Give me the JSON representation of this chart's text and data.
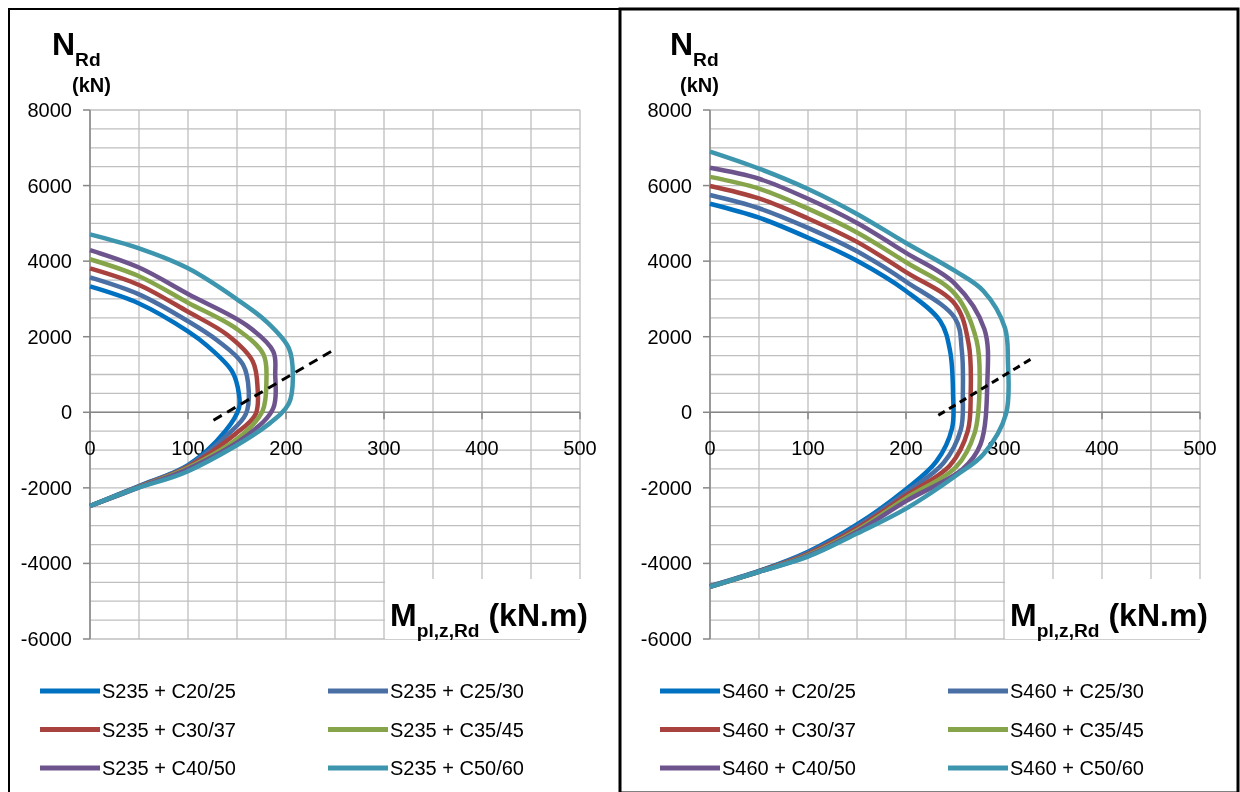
{
  "chart_data": [
    {
      "type": "line",
      "xlabel": "M$_{pl,z,Rd}$ (kN.m)",
      "ylabel": "N$_{Rd}$ (kN)",
      "xlim": [
        0,
        500
      ],
      "ylim": [
        -6000,
        8000
      ],
      "xticks": [
        0,
        {
          "value": 50,
          "label": null
        },
        100,
        {
          "value": 150,
          "label": null
        },
        200,
        {
          "value": 250,
          "label": null
        },
        300,
        {
          "value": 350,
          "label": null
        },
        400,
        {
          "value": 450,
          "label": null
        },
        500
      ],
      "yticks": [
        -6000,
        {
          "value": -5500,
          "label": null
        },
        {
          "value": -5000,
          "label": null
        },
        {
          "value": -4500,
          "label": null
        },
        -4000,
        {
          "value": -3500,
          "label": null
        },
        {
          "value": -3000,
          "label": null
        },
        {
          "value": -2500,
          "label": null
        },
        -2000,
        {
          "value": -1500,
          "label": null
        },
        {
          "value": -1000,
          "label": null
        },
        {
          "value": -500,
          "label": null
        },
        0,
        {
          "value": 500,
          "label": null
        },
        {
          "value": 1000,
          "label": null
        },
        {
          "value": 1500,
          "label": null
        },
        2000,
        {
          "value": 2500,
          "label": null
        },
        {
          "value": 3000,
          "label": null
        },
        {
          "value": 3500,
          "label": null
        },
        4000,
        {
          "value": 4500,
          "label": null
        },
        {
          "value": 5000,
          "label": null
        },
        {
          "value": 5500,
          "label": null
        },
        6000,
        {
          "value": 6500,
          "label": null
        },
        {
          "value": 7000,
          "label": null
        },
        {
          "value": 7500,
          "label": null
        },
        8000
      ],
      "grid": true,
      "legend": "bottom",
      "series": [
        {
          "name": "S235 + C20/25",
          "color": "#0070c0",
          "x": [
            0,
            50,
            100,
            120,
            145,
            152,
            152,
            138,
            100,
            50,
            0
          ],
          "values": [
            3330,
            2880,
            2140,
            1750,
            1080,
            480,
            110,
            -500,
            -1400,
            -1950,
            -2480
          ]
        },
        {
          "name": "S235 + C25/30",
          "color": "#4a6fa5",
          "x": [
            0,
            50,
            100,
            130,
            156,
            162,
            159,
            141,
            100,
            50,
            0
          ],
          "values": [
            3570,
            3120,
            2410,
            1900,
            1270,
            560,
            -50,
            -580,
            -1420,
            -1960,
            -2480
          ]
        },
        {
          "name": "S235 + C30/37",
          "color": "#a8423f",
          "x": [
            0,
            50,
            100,
            140,
            166,
            171,
            169,
            148,
            100,
            50,
            0
          ],
          "values": [
            3810,
            3370,
            2660,
            2050,
            1350,
            640,
            -50,
            -580,
            -1440,
            -1970,
            -2480
          ]
        },
        {
          "name": "S235 + C35/45",
          "color": "#86a44a",
          "x": [
            0,
            50,
            100,
            150,
            177,
            180,
            176,
            156,
            100,
            50,
            0
          ],
          "values": [
            4050,
            3600,
            2900,
            2200,
            1530,
            820,
            30,
            -580,
            -1470,
            -1980,
            -2480
          ]
        },
        {
          "name": "S235 + C40/50",
          "color": "#6e548d",
          "x": [
            0,
            50,
            100,
            160,
            187,
            189,
            187,
            162,
            100,
            50,
            0
          ],
          "values": [
            4290,
            3830,
            3130,
            2300,
            1610,
            1000,
            110,
            -580,
            -1500,
            -1990,
            -2480
          ]
        },
        {
          "name": "S235 + C50/60",
          "color": "#3d96ae",
          "x": [
            0,
            50,
            100,
            150,
            180,
            203,
            207,
            203,
            182,
            100,
            48,
            0
          ],
          "values": [
            4710,
            4340,
            3810,
            2990,
            2400,
            1690,
            900,
            240,
            -320,
            -1560,
            -2010,
            -2480
          ]
        },
        {
          "color": "#000000",
          "line_style": "dashed",
          "x": [
            126,
            246
          ],
          "values": [
            -210,
            1610
          ]
        }
      ]
    },
    {
      "type": "line",
      "xlabel": "M$_{pl,z,Rd}$ (kN.m)",
      "ylabel": "N$_{Rd}$ (kN)",
      "xlim": [
        0,
        500
      ],
      "ylim": [
        -6000,
        8000
      ],
      "xticks": [
        0,
        {
          "value": 50,
          "label": null
        },
        100,
        {
          "value": 150,
          "label": null
        },
        200,
        {
          "value": 250,
          "label": null
        },
        300,
        {
          "value": 350,
          "label": null
        },
        400,
        {
          "value": 450,
          "label": null
        },
        500
      ],
      "yticks": [
        -6000,
        {
          "value": -5500,
          "label": null
        },
        {
          "value": -5000,
          "label": null
        },
        {
          "value": -4500,
          "label": null
        },
        -4000,
        {
          "value": -3500,
          "label": null
        },
        {
          "value": -3000,
          "label": null
        },
        {
          "value": -2500,
          "label": null
        },
        -2000,
        {
          "value": -1500,
          "label": null
        },
        {
          "value": -1000,
          "label": null
        },
        {
          "value": -500,
          "label": null
        },
        0,
        {
          "value": 500,
          "label": null
        },
        {
          "value": 1000,
          "label": null
        },
        {
          "value": 1500,
          "label": null
        },
        2000,
        {
          "value": 2500,
          "label": null
        },
        {
          "value": 3000,
          "label": null
        },
        {
          "value": 3500,
          "label": null
        },
        4000,
        {
          "value": 4500,
          "label": null
        },
        {
          "value": 5000,
          "label": null
        },
        {
          "value": 5500,
          "label": null
        },
        6000,
        {
          "value": 6500,
          "label": null
        },
        {
          "value": 7000,
          "label": null
        },
        {
          "value": 7500,
          "label": null
        },
        8000
      ],
      "grid": true,
      "legend": "bottom",
      "series": [
        {
          "name": "S460 + C20/25",
          "color": "#0070c0",
          "x": [
            0,
            50,
            100,
            150,
            200,
            235,
            245,
            248,
            247,
            231,
            200,
            150,
            100,
            50,
            0
          ],
          "values": [
            5520,
            5150,
            4620,
            4010,
            3210,
            2410,
            1620,
            480,
            -420,
            -1300,
            -2040,
            -2970,
            -3690,
            -4200,
            -4600
          ]
        },
        {
          "name": "S460 + C25/30",
          "color": "#4a6fa5",
          "x": [
            0,
            50,
            100,
            150,
            200,
            250,
            257,
            258,
            256,
            238,
            200,
            150,
            100,
            50,
            0
          ],
          "values": [
            5750,
            5400,
            4880,
            4260,
            3460,
            2490,
            1620,
            500,
            -450,
            -1350,
            -2120,
            -3020,
            -3720,
            -4210,
            -4610
          ]
        },
        {
          "name": "S460 + C30/37",
          "color": "#a8423f",
          "x": [
            0,
            50,
            100,
            150,
            200,
            250,
            264,
            266,
            263,
            245,
            200,
            150,
            100,
            50,
            0
          ],
          "values": [
            5990,
            5660,
            5130,
            4510,
            3710,
            2860,
            1800,
            500,
            -500,
            -1400,
            -2200,
            -3070,
            -3750,
            -4210,
            -4610
          ]
        },
        {
          "name": "S460 + C35/45",
          "color": "#86a44a",
          "x": [
            0,
            50,
            100,
            150,
            200,
            250,
            272,
            275,
            270,
            251,
            200,
            150,
            100,
            50,
            0
          ],
          "values": [
            6230,
            5920,
            5390,
            4760,
            3970,
            3130,
            1900,
            600,
            -550,
            -1450,
            -2270,
            -3120,
            -3780,
            -4220,
            -4620
          ]
        },
        {
          "name": "S460 + C40/50",
          "color": "#6e548d",
          "x": [
            0,
            50,
            100,
            150,
            200,
            250,
            280,
            283,
            276,
            258,
            200,
            150,
            100,
            50,
            0
          ],
          "values": [
            6470,
            6180,
            5650,
            5010,
            4220,
            3400,
            2200,
            800,
            -850,
            -1500,
            -2350,
            -3160,
            -3800,
            -4220,
            -4620
          ]
        },
        {
          "name": "S460 + C50/60",
          "color": "#3d96ae",
          "x": [
            0,
            50,
            100,
            150,
            200,
            250,
            279,
            301,
            304,
            302,
            279,
            253,
            200,
            150,
            100,
            50,
            0
          ],
          "values": [
            6900,
            6450,
            5910,
            5250,
            4480,
            3740,
            3210,
            2230,
            1350,
            -50,
            -1110,
            -1640,
            -2550,
            -3210,
            -3820,
            -4220,
            -4620
          ]
        },
        {
          "color": "#000000",
          "line_style": "dashed",
          "x": [
            233,
            327
          ],
          "values": [
            -80,
            1400
          ]
        }
      ]
    }
  ]
}
